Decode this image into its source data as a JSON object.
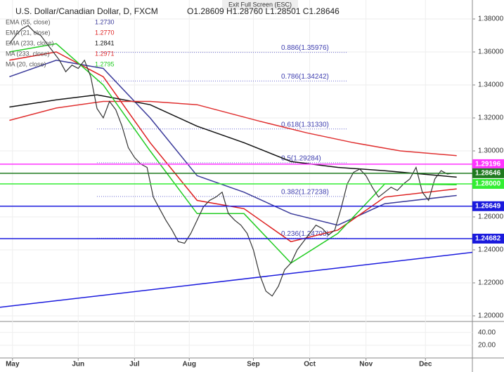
{
  "chart_data": {
    "type": "line",
    "title": "U.S. Dollar/Canadian Dollar, D, FXCM",
    "ohlc": "O1.28609 H1.28760 L1.28501 C1.28646",
    "banner": "Exit Full Screen (ESC)",
    "xlim": [
      -3,
      148
    ],
    "ylim": [
      1.1966,
      1.3915
    ],
    "xticks": [
      {
        "value": 1,
        "label": "May"
      },
      {
        "value": 22,
        "label": "Jun"
      },
      {
        "value": 40,
        "label": "Jul"
      },
      {
        "value": 57.5,
        "label": "Aug"
      },
      {
        "value": 78,
        "label": "Sep"
      },
      {
        "value": 96,
        "label": "Oct"
      },
      {
        "value": 114,
        "label": "Nov"
      },
      {
        "value": 133,
        "label": "Dec"
      }
    ],
    "yticks": [
      {
        "value": 1.2,
        "label": "1.20000"
      },
      {
        "value": 1.22,
        "label": "1.22000"
      },
      {
        "value": 1.24,
        "label": "1.24000"
      },
      {
        "value": 1.26,
        "label": "1.26000"
      },
      {
        "value": 1.28,
        "label": "1.28000"
      },
      {
        "value": 1.3,
        "label": "1.30000"
      },
      {
        "value": 1.32,
        "label": "1.32000"
      },
      {
        "value": 1.34,
        "label": "1.34000"
      },
      {
        "value": 1.36,
        "label": "1.36000"
      },
      {
        "value": 1.38,
        "label": "1.38000"
      }
    ],
    "sub_ticks": [
      {
        "value": 40,
        "label": "40.00"
      },
      {
        "value": 20,
        "label": "20.00"
      }
    ],
    "sub_lim": [
      0,
      55
    ],
    "price": {
      "color": "#333333",
      "x": [
        0,
        2,
        4,
        6,
        8,
        10,
        12,
        14,
        16,
        18,
        20,
        22,
        24,
        26,
        28,
        30,
        32,
        34,
        36,
        38,
        40,
        42,
        44,
        46,
        48,
        50,
        52,
        54,
        56,
        58,
        60,
        62,
        64,
        66,
        68,
        70,
        72,
        74,
        76,
        78,
        80,
        82,
        84,
        86,
        88,
        90,
        92,
        94,
        96,
        98,
        100,
        102,
        104,
        106,
        108,
        110,
        112,
        114,
        116,
        118,
        120,
        122,
        124,
        126,
        128,
        130,
        132,
        134,
        136,
        138,
        140,
        142
      ],
      "values": [
        1.365,
        1.37,
        1.374,
        1.376,
        1.372,
        1.37,
        1.365,
        1.36,
        1.355,
        1.348,
        1.352,
        1.35,
        1.355,
        1.345,
        1.3257,
        1.32,
        1.33,
        1.325,
        1.315,
        1.302,
        1.296,
        1.292,
        1.29,
        1.272,
        1.265,
        1.258,
        1.252,
        1.245,
        1.244,
        1.25,
        1.258,
        1.266,
        1.27,
        1.272,
        1.275,
        1.262,
        1.258,
        1.255,
        1.25,
        1.24,
        1.225,
        1.215,
        1.212,
        1.218,
        1.228,
        1.232,
        1.24,
        1.245,
        1.25,
        1.255,
        1.253,
        1.249,
        1.252,
        1.265,
        1.28,
        1.287,
        1.289,
        1.285,
        1.278,
        1.272,
        1.275,
        1.278,
        1.276,
        1.28,
        1.283,
        1.29,
        1.275,
        1.27,
        1.283,
        1.288,
        1.286,
        1.2865
      ]
    },
    "series": [
      {
        "name": "EMA (55, close)",
        "last": "1.2730",
        "color": "#3a3a9a",
        "x": [
          0,
          15,
          30,
          45,
          60,
          75,
          90,
          105,
          120,
          143
        ],
        "values": [
          1.345,
          1.355,
          1.35,
          1.32,
          1.285,
          1.275,
          1.262,
          1.255,
          1.268,
          1.273
        ]
      },
      {
        "name": "EMA (21, close)",
        "last": "1.2770",
        "color": "#dd1f1f",
        "x": [
          0,
          15,
          30,
          45,
          60,
          75,
          90,
          105,
          120,
          143
        ],
        "values": [
          1.355,
          1.36,
          1.345,
          1.305,
          1.27,
          1.265,
          1.245,
          1.252,
          1.272,
          1.277
        ]
      },
      {
        "name": "EMA (233, close)",
        "last": "1.2841",
        "color": "#111111",
        "x": [
          0,
          15,
          28,
          45,
          60,
          75,
          90,
          105,
          120,
          143
        ],
        "values": [
          1.3266,
          1.331,
          1.334,
          1.328,
          1.315,
          1.305,
          1.2936,
          1.29,
          1.288,
          1.2841
        ]
      },
      {
        "name": "MA (233, close)",
        "last": "1.2971",
        "color": "#e03030",
        "x": [
          0,
          15,
          30,
          45,
          60,
          80,
          95,
          110,
          125,
          143
        ],
        "values": [
          1.3185,
          1.326,
          1.33,
          1.33,
          1.328,
          1.318,
          1.311,
          1.305,
          1.3,
          1.2971
        ]
      },
      {
        "name": "MA (20, close)",
        "last": "1.2795",
        "color": "#22cc22",
        "x": [
          0,
          15,
          30,
          45,
          60,
          75,
          90,
          105,
          120,
          143
        ],
        "values": [
          1.36,
          1.365,
          1.34,
          1.3,
          1.262,
          1.262,
          1.232,
          1.25,
          1.28,
          1.2795
        ]
      }
    ],
    "levels": [
      {
        "value": 1.29196,
        "label": "1.29196",
        "color": "#ff33ff"
      },
      {
        "value": 1.28646,
        "label": "1.28646",
        "color": "#1f7a1f"
      },
      {
        "value": 1.28,
        "label": "1.28000",
        "color": "#33ee33"
      },
      {
        "value": 1.26649,
        "label": "1.26649",
        "color": "#1a1add"
      },
      {
        "value": 1.24682,
        "label": "1.24682",
        "color": "#1a1add"
      }
    ],
    "fibs": [
      {
        "value": 1.35976,
        "label": "0.886(1.35976)"
      },
      {
        "value": 1.34242,
        "label": "0.786(1.34242)"
      },
      {
        "value": 1.3133,
        "label": "0.618(1.31330)"
      },
      {
        "value": 1.29284,
        "label": "0.5(1.29284)"
      },
      {
        "value": 1.27238,
        "label": "0.382(1.27238)"
      },
      {
        "value": 1.24708,
        "label": "0.236(1.24708)"
      }
    ],
    "trendline": {
      "color": "#1a1add",
      "x": [
        -3,
        148
      ],
      "values": [
        1.2052,
        1.2385
      ]
    }
  }
}
